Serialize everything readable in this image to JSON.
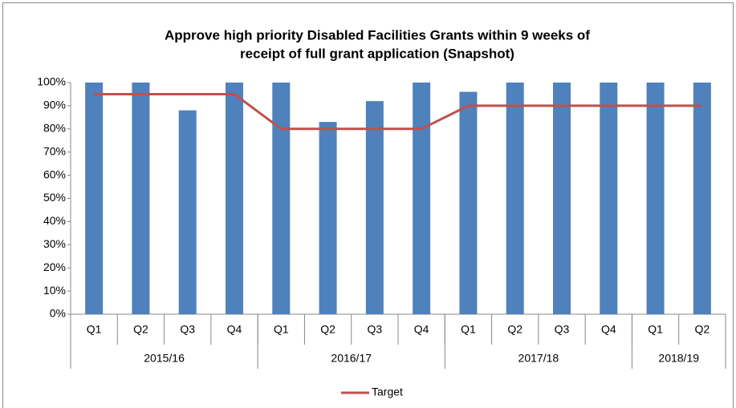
{
  "chart_data": {
    "type": "bar",
    "title": [
      "Approve high priority  Disabled Facilities Grants within  9 weeks of",
      "receipt of full grant application (Snapshot)"
    ],
    "categories": [
      "Q1",
      "Q2",
      "Q3",
      "Q4",
      "Q1",
      "Q2",
      "Q3",
      "Q4",
      "Q1",
      "Q2",
      "Q3",
      "Q4",
      "Q1",
      "Q2"
    ],
    "groups": [
      {
        "name": "2015/16",
        "size": 4
      },
      {
        "name": "2016/17",
        "size": 4
      },
      {
        "name": "2017/18",
        "size": 4
      },
      {
        "name": "2018/19",
        "size": 2
      }
    ],
    "series": [
      {
        "type": "bar",
        "color": "#4f81bd",
        "values": [
          100,
          100,
          88,
          100,
          100,
          83,
          92,
          100,
          96,
          100,
          100,
          100,
          100,
          100
        ]
      },
      {
        "type": "line",
        "name": "Target",
        "color": "#c0504d",
        "values": [
          95,
          95,
          95,
          95,
          80,
          80,
          80,
          80,
          90,
          90,
          90,
          90,
          90,
          90
        ]
      }
    ],
    "ylim": [
      0,
      100
    ],
    "yticks": [
      {
        "value": 0,
        "label": "0%"
      },
      {
        "value": 10,
        "label": "10%"
      },
      {
        "value": 20,
        "label": "20%"
      },
      {
        "value": 30,
        "label": "30%"
      },
      {
        "value": 40,
        "label": "40%"
      },
      {
        "value": 50,
        "label": "50%"
      },
      {
        "value": 60,
        "label": "60%"
      },
      {
        "value": 70,
        "label": "70%"
      },
      {
        "value": 80,
        "label": "80%"
      },
      {
        "value": 90,
        "label": "90%"
      },
      {
        "value": 100,
        "label": "100%"
      }
    ],
    "legend": "bottom"
  }
}
